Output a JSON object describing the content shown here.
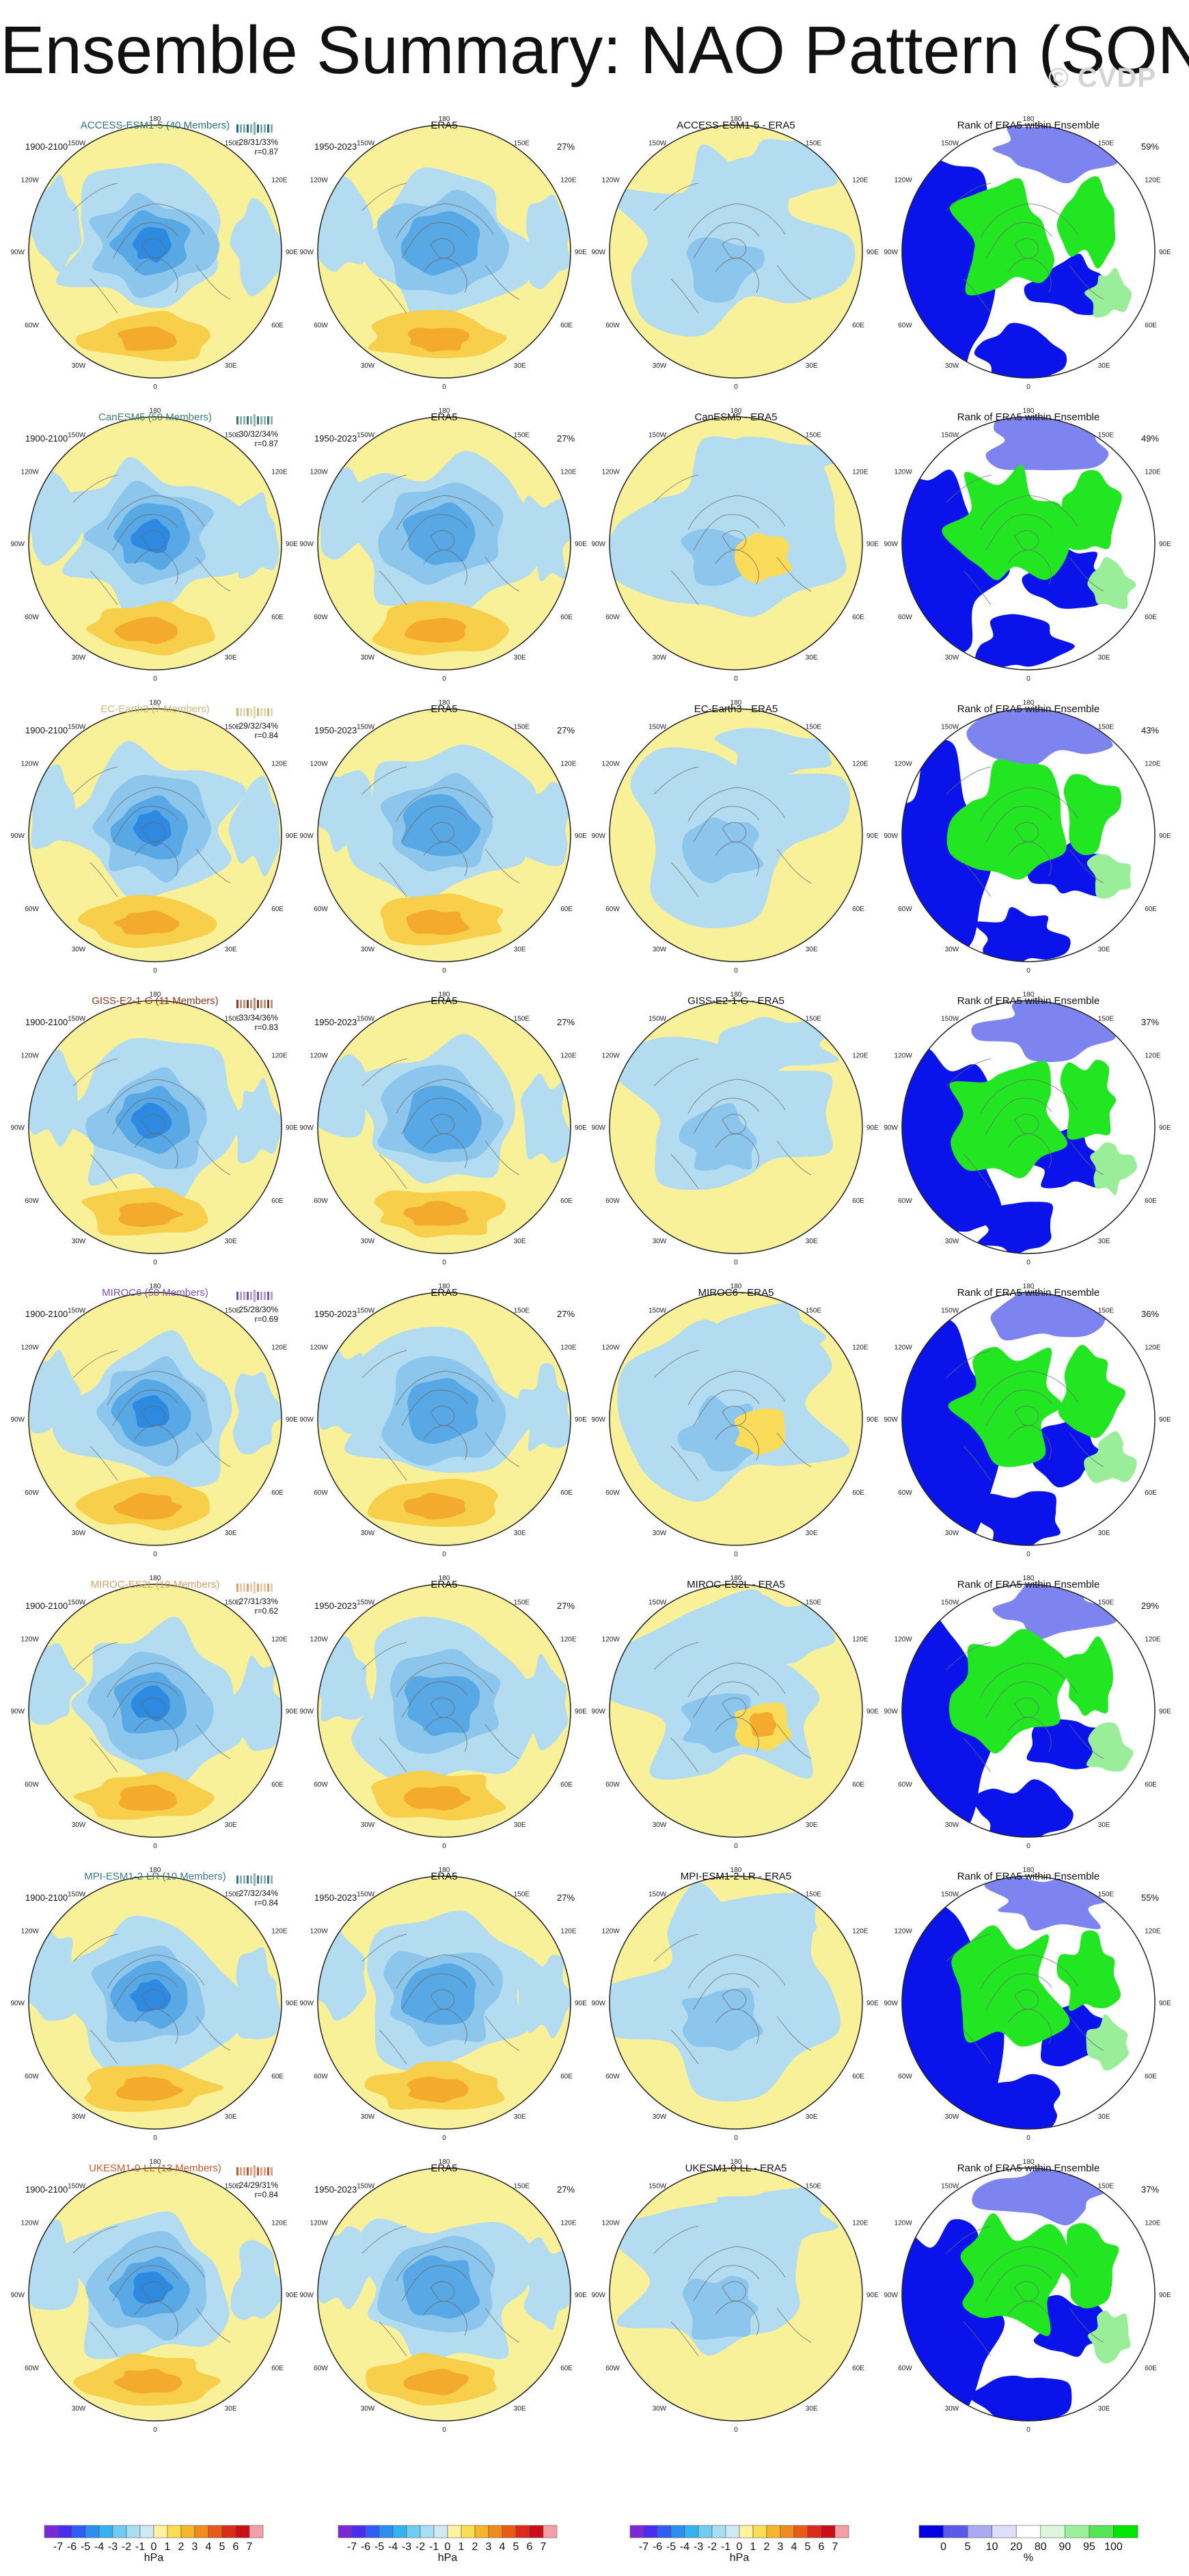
{
  "title": "Ensemble Summary: NAO Pattern (SON)",
  "watermark": "© CVDP",
  "rows": [
    {
      "model": "ACCESS-ESM1-5 (40 Members)",
      "title_color": "#2b6f7f",
      "period": "1900-2100",
      "stats": "28/31/33%",
      "r": "r=0.87",
      "diff_title": "ACCESS-ESM1-5 - ERA5",
      "era5_pct": "27%",
      "rank_pct": "59%",
      "glyph_color": "#1e6e82"
    },
    {
      "model": "CanESM5 (50 Members)",
      "title_color": "#3f7e73",
      "period": "1900-2100",
      "stats": "30/32/34%",
      "r": "r=0.87",
      "diff_title": "CanESM5 - ERA5",
      "era5_pct": "27%",
      "rank_pct": "49%",
      "glyph_color": "#3a7a6a"
    },
    {
      "model": "EC-Earth3 (7 Members)",
      "title_color": "#c7bc7d",
      "period": "1900-2100",
      "stats": "29/32/34%",
      "r": "r=0.84",
      "diff_title": "EC-Earth3 - ERA5",
      "era5_pct": "27%",
      "rank_pct": "43%",
      "glyph_color": "#cbb97a"
    },
    {
      "model": "GISS-E2-1-G (11 Members)",
      "title_color": "#8a3516",
      "period": "1900-2100",
      "stats": "33/34/36%",
      "r": "r=0.83",
      "diff_title": "GISS-E2-1-G - ERA5",
      "era5_pct": "27%",
      "rank_pct": "37%",
      "glyph_color": "#8a3a1a"
    },
    {
      "model": "MIROC6 (50 Members)",
      "title_color": "#7b4fb7",
      "period": "1900-2100",
      "stats": "25/28/30%",
      "r": "r=0.69",
      "diff_title": "MIROC6 - ERA5",
      "era5_pct": "27%",
      "rank_pct": "36%",
      "glyph_color": "#7a52b5"
    },
    {
      "model": "MIROC-ES2L (10 Members)",
      "title_color": "#d8a368",
      "period": "1900-2100",
      "stats": "27/31/33%",
      "r": "r=0.62",
      "diff_title": "MIROC-ES2L - ERA5",
      "era5_pct": "27%",
      "rank_pct": "29%",
      "glyph_color": "#d9a36a"
    },
    {
      "model": "MPI-ESM1-2-LR (10 Members)",
      "title_color": "#3e7a8a",
      "period": "1900-2100",
      "stats": "27/32/34%",
      "r": "r=0.84",
      "diff_title": "MPI-ESM1-2-LR - ERA5",
      "era5_pct": "27%",
      "rank_pct": "55%",
      "glyph_color": "#3b7787"
    },
    {
      "model": "UKESM1-0-LL (13 Members)",
      "title_color": "#c95b2d",
      "period": "1900-2100",
      "stats": "24/29/31%",
      "r": "r=0.84",
      "diff_title": "UKESM1-0-LL - ERA5",
      "era5_pct": "27%",
      "rank_pct": "37%",
      "glyph_color": "#c7582c"
    }
  ],
  "era5": {
    "title": "ERA5",
    "period": "1950-2023"
  },
  "rank_title": "Rank of ERA5 within Ensemble",
  "map_labels": {
    "top": "180",
    "bottom": "0",
    "left": "90W",
    "right": "90E",
    "upper_left_outer": "120W",
    "upper_left_inner": "150W",
    "upper_right_inner": "150E",
    "upper_right_outer": "120E",
    "lower_left_outer": "60W",
    "lower_left_inner": "30W",
    "lower_right_inner": "30E",
    "lower_right_outer": "60E"
  },
  "colorbar_hpa": {
    "ticks": [
      "-7",
      "-6",
      "-5",
      "-4",
      "-3",
      "-2",
      "-1",
      "0",
      "1",
      "2",
      "3",
      "4",
      "5",
      "6",
      "7"
    ],
    "unit": "hPa",
    "colors": [
      "#7a28d8",
      "#4a2cf0",
      "#2f5cf5",
      "#2b8ef0",
      "#34b4ef",
      "#6fcdf2",
      "#a8def4",
      "#cfe9f5",
      "#fff3a0",
      "#fbdd52",
      "#f7b52a",
      "#f18a1f",
      "#e75a17",
      "#dc2a1a",
      "#c90e18",
      "#f39fa6"
    ]
  },
  "colorbar_rank": {
    "ticks": [
      "0",
      "5",
      "10",
      "20",
      "80",
      "90",
      "95",
      "100"
    ],
    "unit": "%",
    "colors": [
      "#0000e0",
      "#5a5aea",
      "#aaaaf2",
      "#dedef8",
      "#ffffff",
      "#dcf7dc",
      "#9cf09c",
      "#55e655",
      "#00e600"
    ]
  },
  "map_colors": {
    "pos_bg": "#f9f199",
    "neg_light": "#b4dcf0",
    "neg_mid": "#8cc6ec",
    "neg_deep": "#58a8e6",
    "neg_core": "#2d8ae0",
    "pos_mid": "#f8cf4a",
    "pos_deep": "#f4aa2c",
    "rank_low": "#0a14ea",
    "rank_low2": "#7d84f0",
    "rank_high": "#22e622",
    "rank_high2": "#9aee9a"
  }
}
